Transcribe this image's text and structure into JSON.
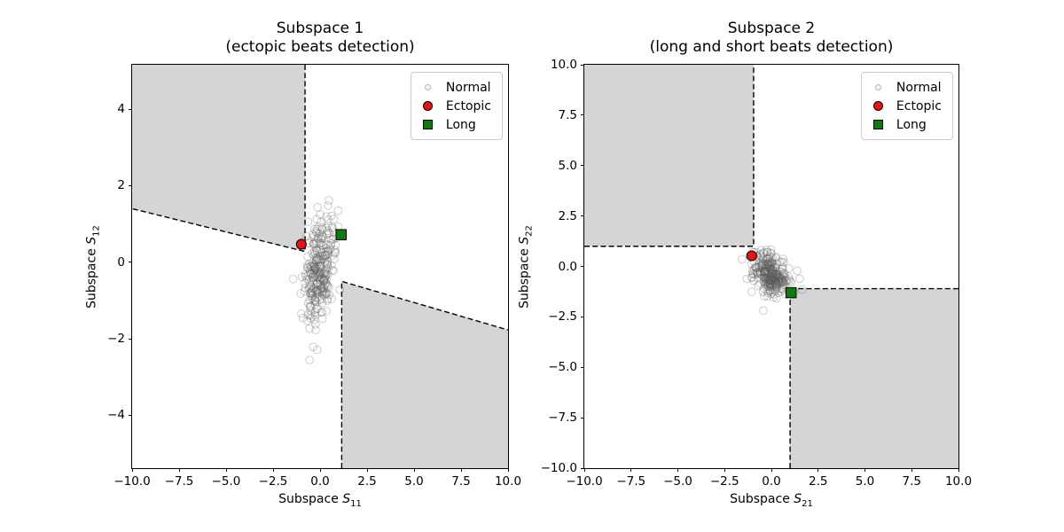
{
  "colors": {
    "region_fill": "#d5d5d5",
    "boundary": "#000000",
    "normal_stroke": "#5a5a5a",
    "normal_alpha": 0.3,
    "ectopic_fill": "#ee1111",
    "long_fill": "#0a7d0a",
    "marker_edge": "#000000",
    "legend_border": "#cccccc"
  },
  "legend": {
    "items": [
      {
        "label": "Normal",
        "marker": "normal"
      },
      {
        "label": "Ectopic",
        "marker": "ectopic"
      },
      {
        "label": "Long",
        "marker": "long"
      }
    ]
  },
  "chart_data": [
    {
      "type": "scatter",
      "title_lines": [
        "Subspace 1",
        "(ectopic beats detection)"
      ],
      "xlabel": {
        "prefix": "Subspace ",
        "symbol": "S",
        "sub": "11"
      },
      "ylabel": {
        "prefix": "Subspace ",
        "symbol": "S",
        "sub": "12"
      },
      "xlim": [
        -10,
        10
      ],
      "ylim": [
        -5.38,
        5.16
      ],
      "xticks": [
        -10,
        -7.5,
        -5,
        -2.5,
        0,
        2.5,
        5,
        7.5,
        10
      ],
      "xtick_labels": [
        "−10.0",
        "−7.5",
        "−5.0",
        "−2.5",
        "0.0",
        "2.5",
        "5.0",
        "7.5",
        "10.0"
      ],
      "yticks": [
        -4,
        -2,
        0,
        2,
        4
      ],
      "ytick_labels": [
        "−4",
        "−2",
        "0",
        "2",
        "4"
      ],
      "grid": false,
      "legend_position": "upper right",
      "regions": [
        {
          "name": "upper-left",
          "polygon": [
            [
              -10,
              5.16
            ],
            [
              -0.8,
              5.16
            ],
            [
              -0.8,
              0.28
            ],
            [
              -10,
              1.4
            ]
          ]
        },
        {
          "name": "lower-right",
          "polygon": [
            [
              1.15,
              -5.38
            ],
            [
              10,
              -5.38
            ],
            [
              10,
              -1.77
            ],
            [
              1.15,
              -0.5
            ]
          ]
        }
      ],
      "boundaries": [
        [
          [
            -0.8,
            5.16
          ],
          [
            -0.8,
            0.28
          ],
          [
            -10,
            1.4
          ]
        ],
        [
          [
            1.15,
            -5.38
          ],
          [
            1.15,
            -0.5
          ],
          [
            10,
            -1.77
          ]
        ]
      ],
      "normal_cluster": {
        "count": 280,
        "center": [
          -0.05,
          -0.15
        ],
        "std": [
          0.42,
          0.72
        ],
        "corr": 0.3,
        "seed": 42
      },
      "ectopic_point": [
        -1.0,
        0.47
      ],
      "long_point": [
        1.12,
        0.72
      ]
    },
    {
      "type": "scatter",
      "title_lines": [
        "Subspace 2",
        "(long and short beats detection)"
      ],
      "xlabel": {
        "prefix": "Subspace ",
        "symbol": "S",
        "sub": "21"
      },
      "ylabel": {
        "prefix": "Subspace ",
        "symbol": "S",
        "sub": "22"
      },
      "xlim": [
        -10,
        10
      ],
      "ylim": [
        -10,
        10
      ],
      "xticks": [
        -10,
        -7.5,
        -5,
        -2.5,
        0,
        2.5,
        5,
        7.5,
        10
      ],
      "xtick_labels": [
        "−10.0",
        "−7.5",
        "−5.0",
        "−2.5",
        "0.0",
        "2.5",
        "5.0",
        "7.5",
        "10.0"
      ],
      "yticks": [
        -10,
        -7.5,
        -5,
        -2.5,
        0,
        2.5,
        5,
        7.5,
        10
      ],
      "ytick_labels": [
        "−10.0",
        "−7.5",
        "−5.0",
        "−2.5",
        "0.0",
        "2.5",
        "5.0",
        "7.5",
        "10.0"
      ],
      "grid": false,
      "legend_position": "upper right",
      "regions": [
        {
          "name": "upper-left",
          "polygon": [
            [
              -10,
              10
            ],
            [
              -0.95,
              10
            ],
            [
              -0.95,
              1.0
            ],
            [
              -10,
              1.0
            ]
          ]
        },
        {
          "name": "lower-right",
          "polygon": [
            [
              1.0,
              -10
            ],
            [
              10,
              -10
            ],
            [
              10,
              -1.1
            ],
            [
              1.0,
              -1.1
            ]
          ]
        }
      ],
      "boundaries": [
        [
          [
            -10,
            1.0
          ],
          [
            -0.95,
            1.0
          ],
          [
            -0.95,
            10
          ]
        ],
        [
          [
            1.0,
            -10
          ],
          [
            1.0,
            -1.1
          ],
          [
            10,
            -1.1
          ]
        ]
      ],
      "normal_cluster": {
        "count": 280,
        "center": [
          0.0,
          -0.35
        ],
        "std": [
          0.5,
          0.55
        ],
        "corr": -0.3,
        "seed": 7
      },
      "ectopic_point": [
        -1.05,
        0.53
      ],
      "long_point": [
        1.05,
        -1.3
      ]
    }
  ]
}
